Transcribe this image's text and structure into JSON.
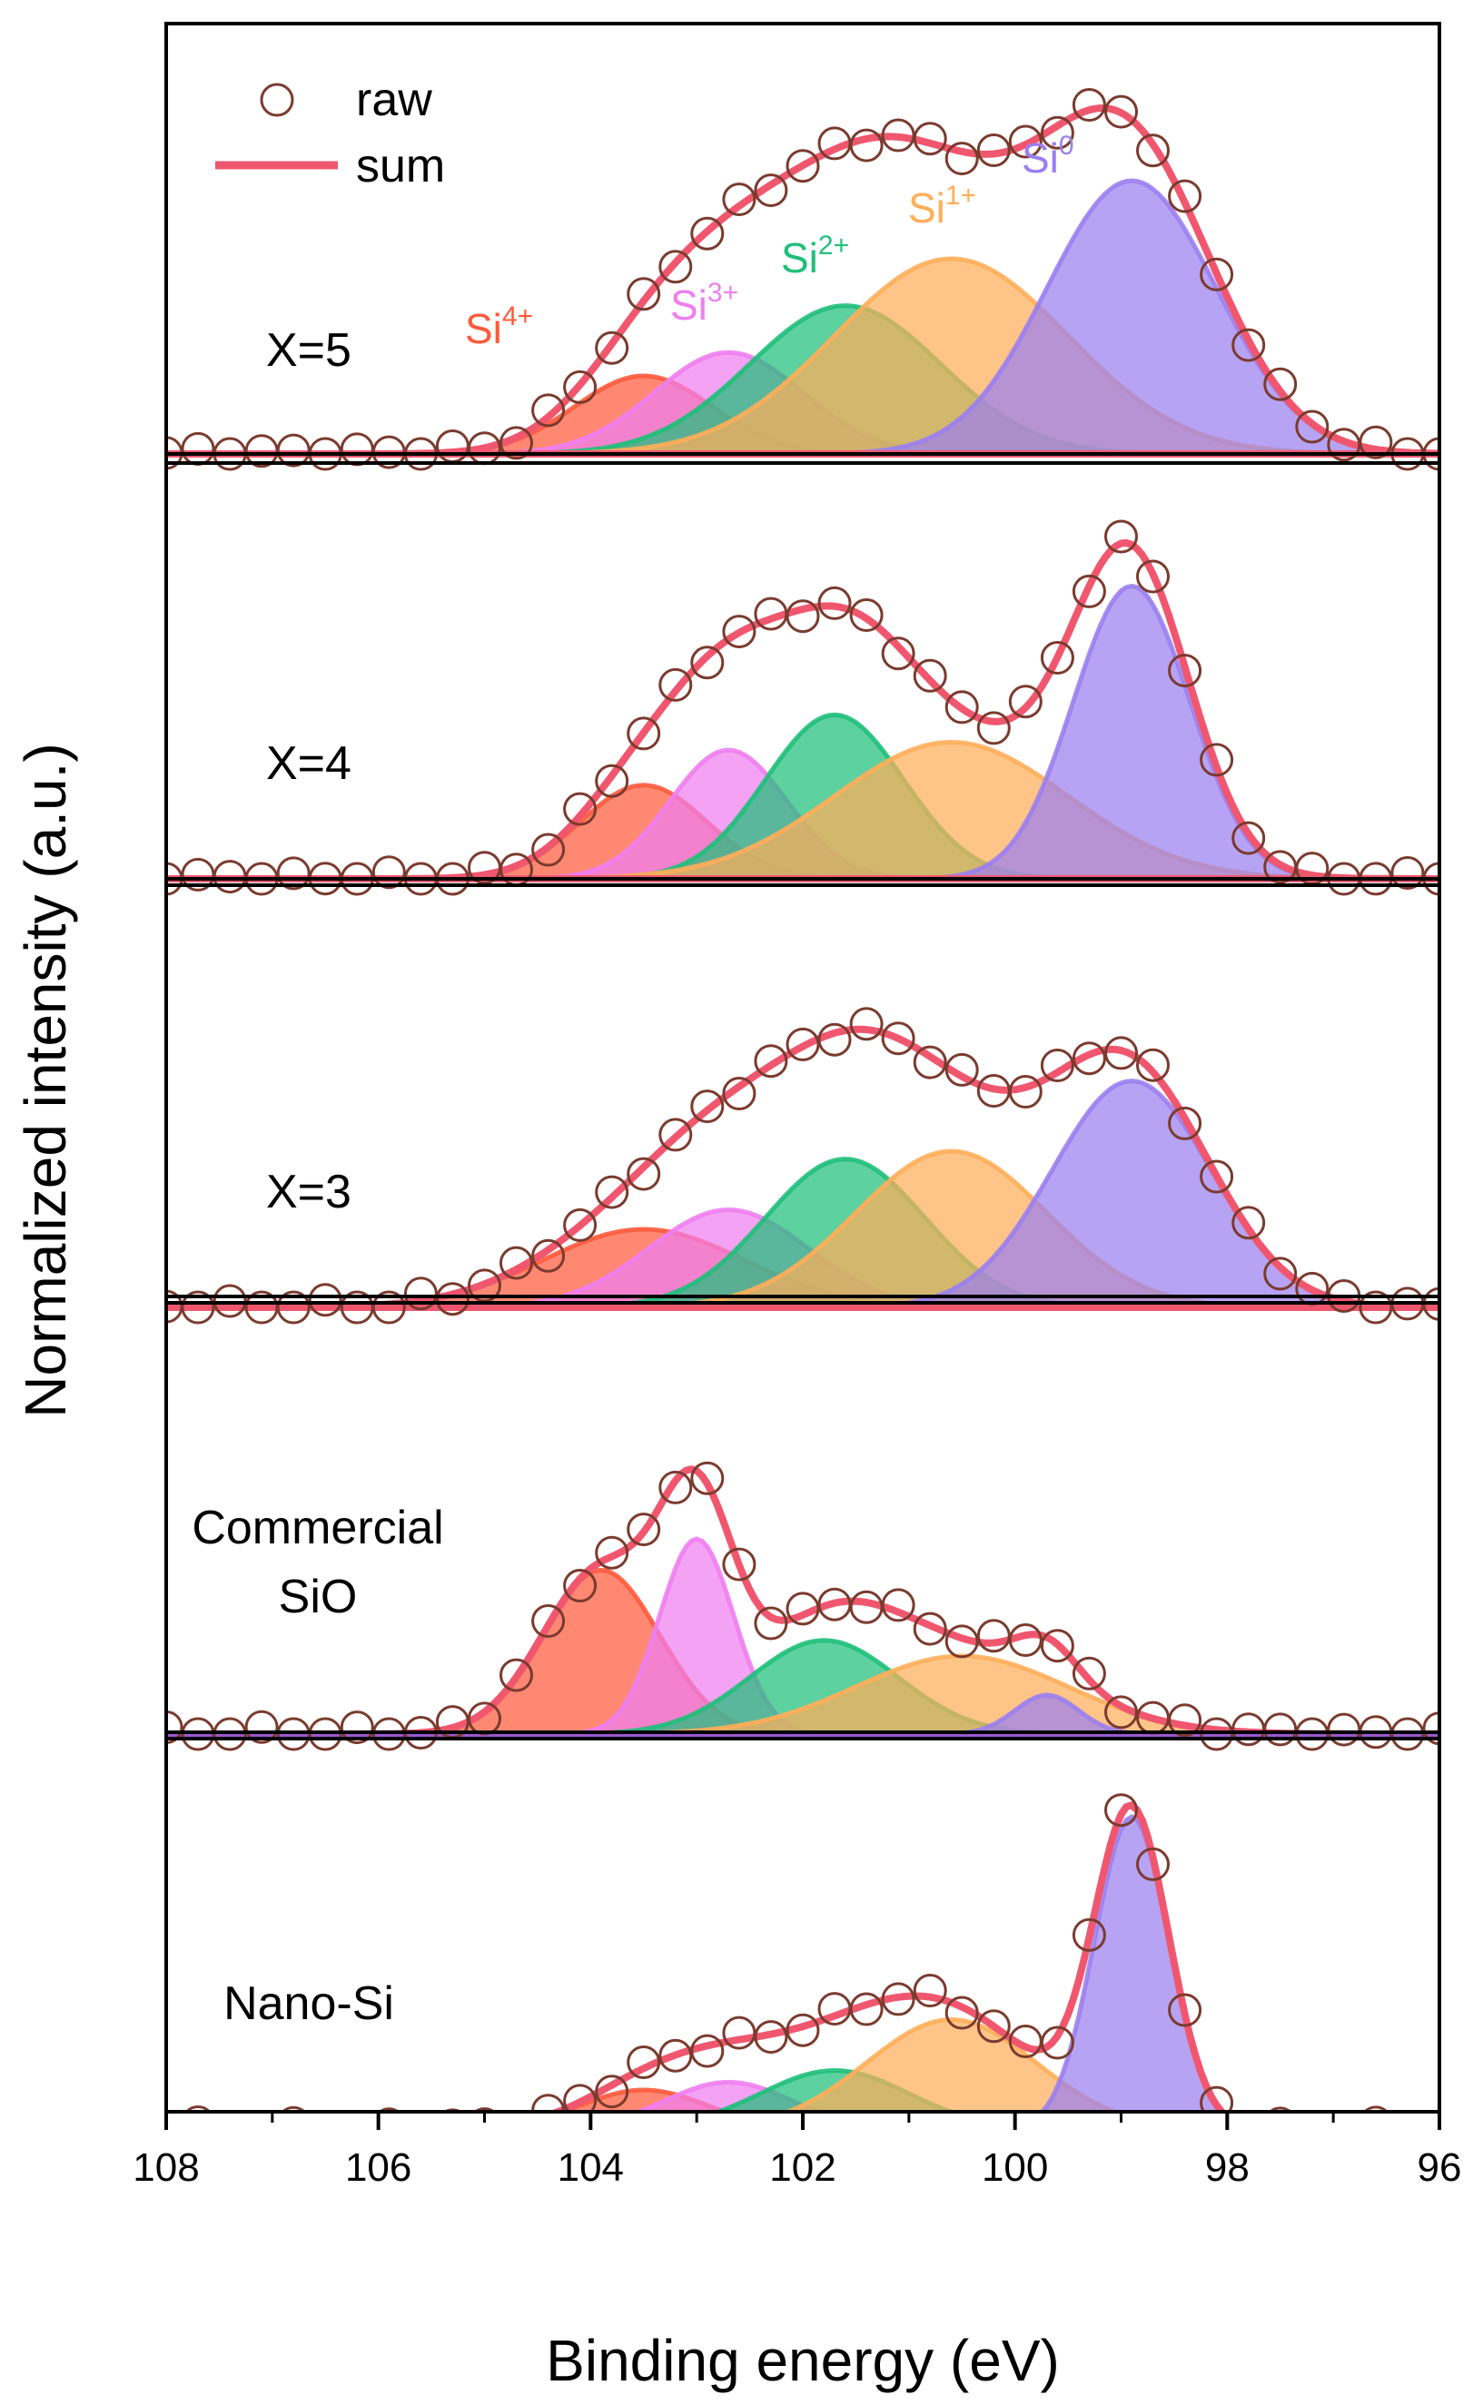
{
  "chart_data": {
    "type": "line",
    "xlabel": "Binding energy (eV)",
    "ylabel": "Normalized intensity (a.u.)",
    "xlim": [
      108,
      96
    ],
    "x_reversed": true,
    "xticks": [
      108,
      106,
      104,
      102,
      100,
      98,
      96
    ],
    "xtick_labels": [
      "108",
      "106",
      "104",
      "102",
      "100",
      "98",
      "96"
    ],
    "legend": [
      {
        "label": "raw",
        "marker": "open-circle",
        "color": "#7a3b2e"
      },
      {
        "label": "sum",
        "marker": "line",
        "color": "#f0576f"
      }
    ],
    "components": [
      {
        "name": "Si4+",
        "base": "Si",
        "sup": "4+",
        "color": "#ff5a3c"
      },
      {
        "name": "Si3+",
        "base": "Si",
        "sup": "3+",
        "color": "#f07ef0"
      },
      {
        "name": "Si2+",
        "base": "Si",
        "sup": "2+",
        "color": "#1fbf7a"
      },
      {
        "name": "Si1+",
        "base": "Si",
        "sup": "1+",
        "color": "#ffae5a"
      },
      {
        "name": "Si0",
        "base": "Si",
        "sup": "0",
        "color": "#9b7ff0"
      }
    ],
    "panels": [
      {
        "label_lines": [
          "X=5"
        ],
        "fits": [
          {
            "component": "Si4+",
            "center": 103.5,
            "height": 0.2,
            "sigma": 0.65
          },
          {
            "component": "Si3+",
            "center": 102.7,
            "height": 0.26,
            "sigma": 0.7
          },
          {
            "component": "Si2+",
            "center": 101.6,
            "height": 0.38,
            "sigma": 0.9
          },
          {
            "component": "Si1+",
            "center": 100.6,
            "height": 0.5,
            "sigma": 1.1
          },
          {
            "component": "Si0",
            "center": 98.9,
            "height": 0.7,
            "sigma": 0.8
          }
        ]
      },
      {
        "label_lines": [
          "X=4"
        ],
        "fits": [
          {
            "component": "Si4+",
            "center": 103.5,
            "height": 0.24,
            "sigma": 0.6
          },
          {
            "component": "Si3+",
            "center": 102.7,
            "height": 0.33,
            "sigma": 0.55
          },
          {
            "component": "Si2+",
            "center": 101.7,
            "height": 0.42,
            "sigma": 0.65
          },
          {
            "component": "Si1+",
            "center": 100.6,
            "height": 0.35,
            "sigma": 1.1
          },
          {
            "component": "Si0",
            "center": 98.9,
            "height": 0.75,
            "sigma": 0.55
          }
        ]
      },
      {
        "label_lines": [
          "X=3"
        ],
        "fits": [
          {
            "component": "Si4+",
            "center": 103.5,
            "height": 0.2,
            "sigma": 0.95
          },
          {
            "component": "Si3+",
            "center": 102.7,
            "height": 0.25,
            "sigma": 0.75
          },
          {
            "component": "Si2+",
            "center": 101.6,
            "height": 0.38,
            "sigma": 0.75
          },
          {
            "component": "Si1+",
            "center": 100.6,
            "height": 0.4,
            "sigma": 0.9
          },
          {
            "component": "Si0",
            "center": 98.9,
            "height": 0.58,
            "sigma": 0.75
          }
        ]
      },
      {
        "label_lines": [
          "Commercial",
          "SiO"
        ],
        "fits": [
          {
            "component": "Si4+",
            "center": 103.9,
            "height": 0.42,
            "sigma": 0.55
          },
          {
            "component": "Si3+",
            "center": 103.0,
            "height": 0.5,
            "sigma": 0.35
          },
          {
            "component": "Si2+",
            "center": 101.8,
            "height": 0.24,
            "sigma": 0.7
          },
          {
            "component": "Si1+",
            "center": 100.5,
            "height": 0.2,
            "sigma": 1.0
          },
          {
            "component": "Si0",
            "center": 99.7,
            "height": 0.1,
            "sigma": 0.3
          }
        ]
      },
      {
        "label_lines": [
          "Nano-Si"
        ],
        "fits": [
          {
            "component": "Si4+",
            "center": 103.5,
            "height": 0.1,
            "sigma": 0.6
          },
          {
            "component": "Si3+",
            "center": 102.7,
            "height": 0.12,
            "sigma": 0.6
          },
          {
            "component": "Si2+",
            "center": 101.7,
            "height": 0.15,
            "sigma": 0.7
          },
          {
            "component": "Si1+",
            "center": 100.6,
            "height": 0.28,
            "sigma": 0.8
          },
          {
            "component": "Si0",
            "center": 98.9,
            "height": 0.8,
            "sigma": 0.35
          }
        ]
      }
    ]
  }
}
